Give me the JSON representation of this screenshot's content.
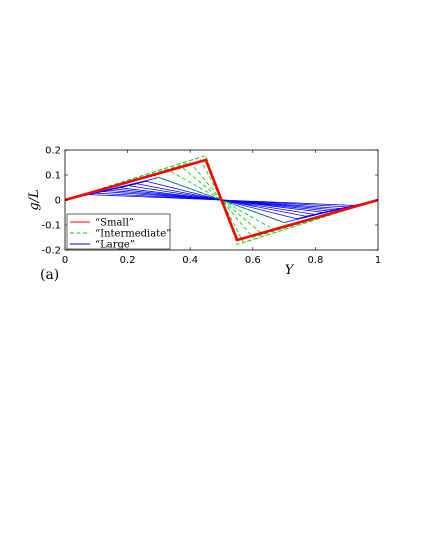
{
  "chart_data": {
    "type": "line",
    "xlabel": "Y",
    "ylabel": "g/L",
    "panel_label": "(a)",
    "xlim": [
      0,
      1
    ],
    "ylim": [
      -0.2,
      0.2
    ],
    "xticks": [
      "0",
      "0.2",
      "0.4",
      "0.6",
      "0.8",
      "1"
    ],
    "xtick_values": [
      0,
      0.2,
      0.4,
      0.6,
      0.8,
      1
    ],
    "yticks": [
      "0.2",
      "0.1",
      "0",
      "-0.1",
      "-0.2"
    ],
    "ytick_values": [
      0.2,
      0.1,
      0,
      -0.1,
      -0.2
    ],
    "grid": false,
    "legend_position": "bottom-left",
    "series": [
      {
        "name": "“Small”",
        "color": "#ff0000",
        "style": "solid",
        "curves": [
          {
            "x": [
              0,
              0.45,
              0.5,
              0.55,
              1
            ],
            "y": [
              0,
              0.16,
              0,
              -0.16,
              0
            ]
          }
        ]
      },
      {
        "name": "“Intermediate”",
        "color": "#00cc00",
        "style": "dashed",
        "curves": [
          {
            "x": [
              0,
              0.45,
              0.5,
              0.55,
              1
            ],
            "y": [
              0,
              0.178,
              0,
              -0.178,
              0
            ]
          },
          {
            "x": [
              0,
              0.43,
              0.5,
              0.57,
              1
            ],
            "y": [
              0,
              0.17,
              0,
              -0.17,
              0
            ]
          },
          {
            "x": [
              0,
              0.4,
              0.5,
              0.6,
              1
            ],
            "y": [
              0,
              0.15,
              0,
              -0.15,
              0
            ]
          },
          {
            "x": [
              0,
              0.37,
              0.5,
              0.63,
              1
            ],
            "y": [
              0,
              0.135,
              0,
              -0.135,
              0
            ]
          },
          {
            "x": [
              0,
              0.33,
              0.5,
              0.67,
              1
            ],
            "y": [
              0,
              0.12,
              0,
              -0.12,
              0
            ]
          },
          {
            "x": [
              0,
              0.28,
              0.5,
              0.72,
              1
            ],
            "y": [
              0,
              0.1,
              0,
              -0.1,
              0
            ]
          }
        ]
      },
      {
        "name": "“Large”",
        "color": "#0000ff",
        "style": "solid",
        "curves": [
          {
            "x": [
              0,
              0.3,
              0.5,
              0.7,
              1
            ],
            "y": [
              0,
              0.09,
              0,
              -0.09,
              0
            ]
          },
          {
            "x": [
              0,
              0.26,
              0.5,
              0.74,
              1
            ],
            "y": [
              0,
              0.075,
              0,
              -0.075,
              0
            ]
          },
          {
            "x": [
              0,
              0.23,
              0.5,
              0.77,
              1
            ],
            "y": [
              0,
              0.065,
              0,
              -0.065,
              0
            ]
          },
          {
            "x": [
              0,
              0.2,
              0.5,
              0.8,
              1
            ],
            "y": [
              0,
              0.058,
              0,
              -0.058,
              0
            ]
          },
          {
            "x": [
              0,
              0.17,
              0.5,
              0.83,
              1
            ],
            "y": [
              0,
              0.05,
              0,
              -0.05,
              0
            ]
          },
          {
            "x": [
              0,
              0.15,
              0.5,
              0.85,
              1
            ],
            "y": [
              0,
              0.045,
              0,
              -0.045,
              0
            ]
          },
          {
            "x": [
              0,
              0.13,
              0.5,
              0.87,
              1
            ],
            "y": [
              0,
              0.04,
              0,
              -0.04,
              0
            ]
          },
          {
            "x": [
              0,
              0.11,
              0.5,
              0.89,
              1
            ],
            "y": [
              0,
              0.035,
              0,
              -0.035,
              0
            ]
          },
          {
            "x": [
              0,
              0.09,
              0.5,
              0.91,
              1
            ],
            "y": [
              0,
              0.028,
              0,
              -0.028,
              0
            ]
          },
          {
            "x": [
              0,
              0.07,
              0.5,
              0.93,
              1
            ],
            "y": [
              0,
              0.022,
              0,
              -0.022,
              0
            ]
          }
        ]
      }
    ]
  }
}
